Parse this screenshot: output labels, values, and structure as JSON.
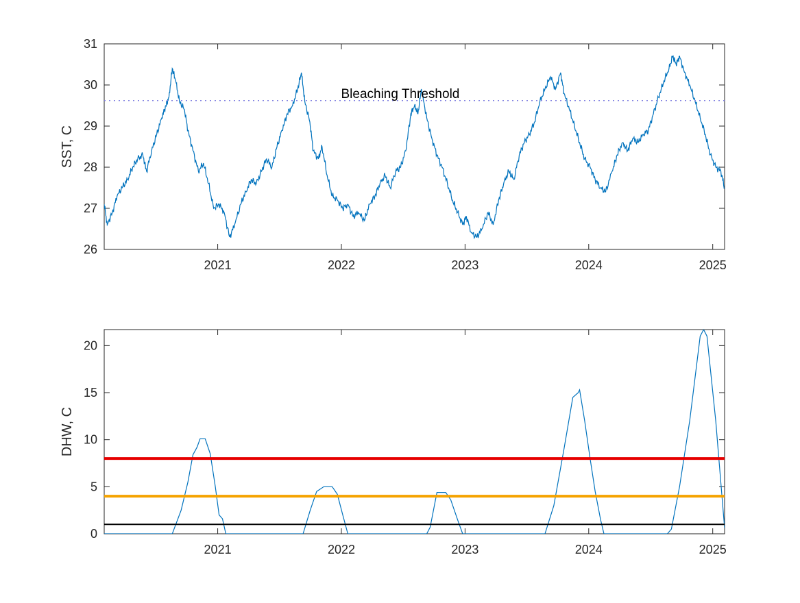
{
  "chart_data": [
    {
      "type": "line",
      "title": "",
      "xlabel": "",
      "ylabel": "SST, C",
      "xlim": [
        "2020-02-01",
        "2025-02-05"
      ],
      "ylim": [
        26,
        31
      ],
      "xticks": [
        "2021",
        "2022",
        "2023",
        "2024",
        "2025"
      ],
      "yticks": [
        "26",
        "27",
        "28",
        "29",
        "30",
        "31"
      ],
      "grid": false,
      "legend": "none",
      "annotations": [
        {
          "text": "Bleaching Threshold",
          "x": "2021-12-31",
          "y": 29.8
        }
      ],
      "reference_lines": [
        {
          "y": 29.62,
          "style": "dotted",
          "color": "#7e7ee0"
        }
      ],
      "series": [
        {
          "color": "#0072bd",
          "points": [
            [
              "2020-02-01",
              27.1
            ],
            [
              "2020-02-10",
              26.6
            ],
            [
              "2020-02-25",
              26.9
            ],
            [
              "2020-03-10",
              27.3
            ],
            [
              "2020-03-25",
              27.5
            ],
            [
              "2020-04-10",
              27.7
            ],
            [
              "2020-04-25",
              28.0
            ],
            [
              "2020-05-10",
              28.2
            ],
            [
              "2020-05-25",
              28.3
            ],
            [
              "2020-06-05",
              27.9
            ],
            [
              "2020-06-20",
              28.4
            ],
            [
              "2020-07-05",
              28.8
            ],
            [
              "2020-07-20",
              29.2
            ],
            [
              "2020-08-01",
              29.5
            ],
            [
              "2020-08-10",
              29.7
            ],
            [
              "2020-08-20",
              30.4
            ],
            [
              "2020-08-30",
              30.1
            ],
            [
              "2020-09-10",
              29.6
            ],
            [
              "2020-09-25",
              29.4
            ],
            [
              "2020-10-05",
              28.9
            ],
            [
              "2020-10-20",
              28.4
            ],
            [
              "2020-11-05",
              27.9
            ],
            [
              "2020-11-20",
              28.1
            ],
            [
              "2020-12-05",
              27.6
            ],
            [
              "2020-12-20",
              27.0
            ],
            [
              "2021-01-05",
              27.1
            ],
            [
              "2021-01-20",
              26.9
            ],
            [
              "2021-02-05",
              26.3
            ],
            [
              "2021-02-20",
              26.6
            ],
            [
              "2021-03-10",
              27.1
            ],
            [
              "2021-03-25",
              27.4
            ],
            [
              "2021-04-10",
              27.7
            ],
            [
              "2021-04-25",
              27.6
            ],
            [
              "2021-05-10",
              27.9
            ],
            [
              "2021-05-25",
              28.2
            ],
            [
              "2021-06-10",
              28.0
            ],
            [
              "2021-06-25",
              28.5
            ],
            [
              "2021-07-10",
              28.9
            ],
            [
              "2021-07-25",
              29.3
            ],
            [
              "2021-08-10",
              29.5
            ],
            [
              "2021-08-25",
              29.9
            ],
            [
              "2021-09-05",
              30.3
            ],
            [
              "2021-09-15",
              29.6
            ],
            [
              "2021-09-30",
              29.1
            ],
            [
              "2021-10-10",
              28.4
            ],
            [
              "2021-10-25",
              28.2
            ],
            [
              "2021-11-05",
              28.5
            ],
            [
              "2021-11-20",
              27.8
            ],
            [
              "2021-12-05",
              27.3
            ],
            [
              "2021-12-20",
              27.2
            ],
            [
              "2022-01-05",
              27.0
            ],
            [
              "2022-01-20",
              27.1
            ],
            [
              "2022-02-05",
              26.8
            ],
            [
              "2022-02-20",
              26.9
            ],
            [
              "2022-03-10",
              26.7
            ],
            [
              "2022-03-25",
              27.1
            ],
            [
              "2022-04-10",
              27.3
            ],
            [
              "2022-04-25",
              27.6
            ],
            [
              "2022-05-10",
              27.8
            ],
            [
              "2022-05-25",
              27.5
            ],
            [
              "2022-06-10",
              27.9
            ],
            [
              "2022-06-25",
              28.0
            ],
            [
              "2022-07-10",
              28.4
            ],
            [
              "2022-07-25",
              29.3
            ],
            [
              "2022-08-05",
              29.5
            ],
            [
              "2022-08-15",
              29.3
            ],
            [
              "2022-08-25",
              29.9
            ],
            [
              "2022-09-10",
              29.2
            ],
            [
              "2022-09-25",
              28.7
            ],
            [
              "2022-10-10",
              28.3
            ],
            [
              "2022-10-25",
              28.0
            ],
            [
              "2022-11-10",
              27.6
            ],
            [
              "2022-11-25",
              27.2
            ],
            [
              "2022-12-10",
              26.9
            ],
            [
              "2022-12-25",
              26.6
            ],
            [
              "2023-01-05",
              26.8
            ],
            [
              "2023-01-20",
              26.4
            ],
            [
              "2023-02-05",
              26.3
            ],
            [
              "2023-02-20",
              26.5
            ],
            [
              "2023-03-10",
              26.9
            ],
            [
              "2023-03-25",
              26.6
            ],
            [
              "2023-04-10",
              27.2
            ],
            [
              "2023-04-25",
              27.6
            ],
            [
              "2023-05-10",
              27.9
            ],
            [
              "2023-05-25",
              27.7
            ],
            [
              "2023-06-10",
              28.3
            ],
            [
              "2023-06-25",
              28.6
            ],
            [
              "2023-07-10",
              28.8
            ],
            [
              "2023-07-25",
              29.1
            ],
            [
              "2023-08-10",
              29.6
            ],
            [
              "2023-08-25",
              29.9
            ],
            [
              "2023-09-10",
              30.2
            ],
            [
              "2023-09-25",
              29.9
            ],
            [
              "2023-10-10",
              30.3
            ],
            [
              "2023-10-20",
              29.8
            ],
            [
              "2023-11-05",
              29.4
            ],
            [
              "2023-11-20",
              29.0
            ],
            [
              "2023-12-05",
              28.6
            ],
            [
              "2023-12-20",
              28.2
            ],
            [
              "2024-01-05",
              28.0
            ],
            [
              "2024-01-20",
              27.7
            ],
            [
              "2024-02-05",
              27.5
            ],
            [
              "2024-02-20",
              27.4
            ],
            [
              "2024-03-10",
              27.9
            ],
            [
              "2024-03-25",
              28.3
            ],
            [
              "2024-04-10",
              28.6
            ],
            [
              "2024-04-25",
              28.4
            ],
            [
              "2024-05-10",
              28.7
            ],
            [
              "2024-05-25",
              28.6
            ],
            [
              "2024-06-10",
              28.8
            ],
            [
              "2024-06-25",
              28.9
            ],
            [
              "2024-07-10",
              29.3
            ],
            [
              "2024-07-25",
              29.7
            ],
            [
              "2024-08-10",
              30.1
            ],
            [
              "2024-08-25",
              30.4
            ],
            [
              "2024-09-05",
              30.7
            ],
            [
              "2024-09-15",
              30.5
            ],
            [
              "2024-09-25",
              30.7
            ],
            [
              "2024-10-10",
              30.3
            ],
            [
              "2024-10-25",
              30.0
            ],
            [
              "2024-11-10",
              29.6
            ],
            [
              "2024-11-25",
              29.2
            ],
            [
              "2024-12-10",
              28.8
            ],
            [
              "2024-12-25",
              28.3
            ],
            [
              "2025-01-10",
              28.0
            ],
            [
              "2025-01-25",
              27.9
            ],
            [
              "2025-02-05",
              27.5
            ]
          ]
        }
      ]
    },
    {
      "type": "line",
      "title": "",
      "xlabel": "",
      "ylabel": "DHW, C",
      "xlim": [
        "2020-02-01",
        "2025-02-05"
      ],
      "ylim": [
        0,
        21.7
      ],
      "xticks": [
        "2021",
        "2022",
        "2023",
        "2024",
        "2025"
      ],
      "yticks": [
        "0",
        "5",
        "10",
        "15",
        "20"
      ],
      "grid": false,
      "legend": "none",
      "reference_lines": [
        {
          "y": 8,
          "color": "#e60000"
        },
        {
          "y": 4,
          "color": "#f5a300"
        },
        {
          "y": 1,
          "color": "#000000"
        }
      ],
      "series": [
        {
          "color": "#0072bd",
          "points": [
            [
              "2020-02-01",
              0
            ],
            [
              "2020-08-20",
              0
            ],
            [
              "2020-09-15",
              2.5
            ],
            [
              "2020-10-05",
              5.5
            ],
            [
              "2020-10-20",
              8.4
            ],
            [
              "2020-11-01",
              9.2
            ],
            [
              "2020-11-10",
              10.1
            ],
            [
              "2020-11-25",
              10.1
            ],
            [
              "2020-12-10",
              8.5
            ],
            [
              "2020-12-25",
              5.0
            ],
            [
              "2021-01-05",
              2.0
            ],
            [
              "2021-01-15",
              1.6
            ],
            [
              "2021-01-25",
              0
            ],
            [
              "2021-09-10",
              0
            ],
            [
              "2021-10-01",
              2.5
            ],
            [
              "2021-10-20",
              4.5
            ],
            [
              "2021-11-10",
              5.0
            ],
            [
              "2021-12-05",
              5.0
            ],
            [
              "2021-12-20",
              4.2
            ],
            [
              "2022-01-05",
              2.0
            ],
            [
              "2022-01-20",
              0
            ],
            [
              "2022-09-10",
              0
            ],
            [
              "2022-09-20",
              0.7
            ],
            [
              "2022-10-10",
              4.4
            ],
            [
              "2022-11-05",
              4.4
            ],
            [
              "2022-11-20",
              3.6
            ],
            [
              "2022-12-10",
              1.5
            ],
            [
              "2022-12-25",
              0
            ],
            [
              "2023-08-25",
              0
            ],
            [
              "2023-09-20",
              3.0
            ],
            [
              "2023-10-20",
              9.0
            ],
            [
              "2023-11-15",
              14.5
            ],
            [
              "2023-12-01",
              15.0
            ],
            [
              "2023-12-05",
              15.3
            ],
            [
              "2023-12-20",
              12.0
            ],
            [
              "2024-01-05",
              8.0
            ],
            [
              "2024-01-20",
              4.5
            ],
            [
              "2024-02-05",
              1.5
            ],
            [
              "2024-02-15",
              0
            ],
            [
              "2024-08-20",
              0
            ],
            [
              "2024-09-01",
              0.5
            ],
            [
              "2024-09-25",
              5.0
            ],
            [
              "2024-10-25",
              12.0
            ],
            [
              "2024-11-25",
              21.0
            ],
            [
              "2024-12-05",
              21.7
            ],
            [
              "2024-12-15",
              21.0
            ],
            [
              "2025-01-10",
              12.0
            ],
            [
              "2025-02-05",
              0.6
            ]
          ]
        }
      ]
    }
  ]
}
